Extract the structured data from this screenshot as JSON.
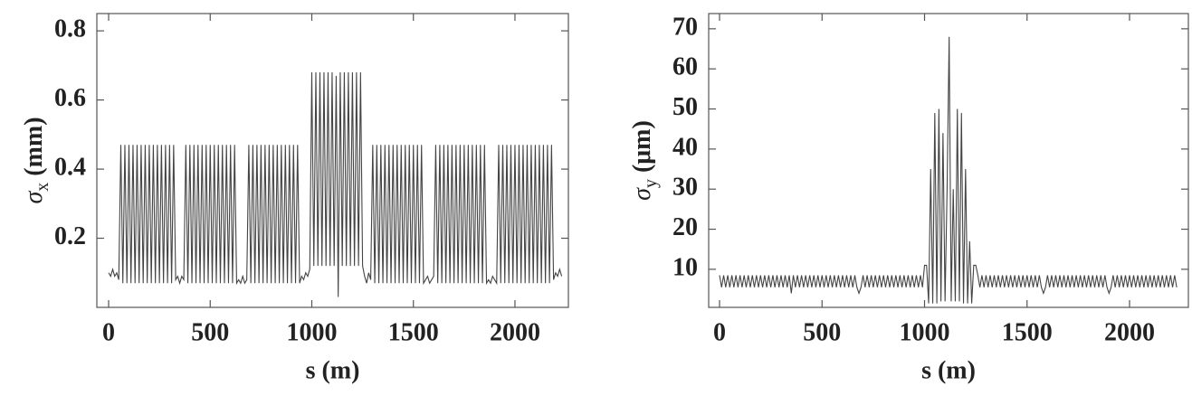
{
  "chart_data": [
    {
      "type": "line",
      "ylabel_symbol": "σ",
      "ylabel_subscript": "x",
      "ylabel_unit": " (mm)",
      "xlabel": "s (m)",
      "xlim": [
        -58,
        2263
      ],
      "xticks": [
        0,
        500,
        1000,
        1500,
        2000
      ],
      "ylim": [
        0,
        0.85
      ],
      "yticks": [
        0.2,
        0.4,
        0.6,
        0.8
      ],
      "color": "#444",
      "x": [
        0,
        10,
        20,
        30,
        40,
        50,
        60,
        70,
        80,
        90,
        100,
        110,
        120,
        130,
        140,
        150,
        160,
        170,
        180,
        190,
        200,
        210,
        220,
        230,
        240,
        250,
        260,
        270,
        280,
        290,
        300,
        310,
        320,
        330,
        340,
        350,
        360,
        370,
        380,
        390,
        400,
        410,
        420,
        430,
        440,
        450,
        460,
        470,
        480,
        490,
        500,
        510,
        520,
        530,
        540,
        550,
        560,
        570,
        580,
        590,
        600,
        610,
        620,
        630,
        640,
        650,
        660,
        670,
        680,
        690,
        700,
        710,
        720,
        730,
        740,
        750,
        760,
        770,
        780,
        790,
        800,
        810,
        820,
        830,
        840,
        850,
        860,
        870,
        880,
        890,
        900,
        910,
        920,
        930,
        940,
        950,
        960,
        970,
        980,
        990,
        1000,
        1010,
        1020,
        1030,
        1040,
        1050,
        1060,
        1070,
        1080,
        1090,
        1100,
        1110,
        1120,
        1130,
        1140,
        1150,
        1160,
        1170,
        1180,
        1190,
        1200,
        1210,
        1220,
        1230,
        1240,
        1250,
        1260,
        1270,
        1280,
        1290,
        1300,
        1310,
        1320,
        1330,
        1340,
        1350,
        1360,
        1370,
        1380,
        1390,
        1400,
        1410,
        1420,
        1430,
        1440,
        1450,
        1460,
        1470,
        1480,
        1490,
        1500,
        1510,
        1520,
        1530,
        1540,
        1550,
        1560,
        1570,
        1580,
        1590,
        1600,
        1610,
        1620,
        1630,
        1640,
        1650,
        1660,
        1670,
        1680,
        1690,
        1700,
        1710,
        1720,
        1730,
        1740,
        1750,
        1760,
        1770,
        1780,
        1790,
        1800,
        1810,
        1820,
        1830,
        1840,
        1850,
        1860,
        1870,
        1880,
        1890,
        1900,
        1910,
        1920,
        1930,
        1940,
        1950,
        1960,
        1970,
        1980,
        1990,
        2000,
        2010,
        2020,
        2030,
        2040,
        2050,
        2060,
        2070,
        2080,
        2090,
        2100,
        2110,
        2120,
        2130,
        2140,
        2150,
        2160,
        2170,
        2180,
        2190,
        2200,
        2210,
        2220,
        2230
      ],
      "values": [
        0.1,
        0.09,
        0.11,
        0.09,
        0.1,
        0.08,
        0.47,
        0.07,
        0.47,
        0.07,
        0.47,
        0.07,
        0.47,
        0.07,
        0.47,
        0.07,
        0.47,
        0.07,
        0.47,
        0.07,
        0.47,
        0.07,
        0.47,
        0.07,
        0.47,
        0.07,
        0.47,
        0.07,
        0.47,
        0.07,
        0.47,
        0.07,
        0.47,
        0.08,
        0.09,
        0.07,
        0.09,
        0.08,
        0.47,
        0.07,
        0.47,
        0.07,
        0.47,
        0.07,
        0.47,
        0.07,
        0.47,
        0.07,
        0.47,
        0.07,
        0.47,
        0.07,
        0.47,
        0.07,
        0.47,
        0.07,
        0.47,
        0.07,
        0.47,
        0.07,
        0.47,
        0.07,
        0.47,
        0.07,
        0.08,
        0.07,
        0.09,
        0.07,
        0.08,
        0.47,
        0.07,
        0.47,
        0.07,
        0.47,
        0.07,
        0.47,
        0.07,
        0.47,
        0.07,
        0.47,
        0.07,
        0.47,
        0.07,
        0.47,
        0.07,
        0.47,
        0.07,
        0.47,
        0.07,
        0.47,
        0.07,
        0.47,
        0.07,
        0.47,
        0.07,
        0.09,
        0.08,
        0.1,
        0.09,
        0.11,
        0.68,
        0.12,
        0.68,
        0.12,
        0.68,
        0.12,
        0.68,
        0.12,
        0.68,
        0.12,
        0.68,
        0.12,
        0.67,
        0.03,
        0.68,
        0.12,
        0.68,
        0.12,
        0.68,
        0.12,
        0.68,
        0.12,
        0.68,
        0.12,
        0.68,
        0.12,
        0.09,
        0.07,
        0.1,
        0.08,
        0.47,
        0.07,
        0.47,
        0.07,
        0.47,
        0.07,
        0.47,
        0.07,
        0.47,
        0.07,
        0.47,
        0.07,
        0.47,
        0.07,
        0.47,
        0.07,
        0.47,
        0.07,
        0.47,
        0.07,
        0.47,
        0.07,
        0.47,
        0.07,
        0.47,
        0.07,
        0.08,
        0.09,
        0.07,
        0.08,
        0.09,
        0.47,
        0.07,
        0.47,
        0.07,
        0.47,
        0.07,
        0.47,
        0.07,
        0.47,
        0.07,
        0.47,
        0.07,
        0.47,
        0.07,
        0.47,
        0.07,
        0.47,
        0.07,
        0.47,
        0.07,
        0.47,
        0.07,
        0.47,
        0.07,
        0.47,
        0.07,
        0.08,
        0.07,
        0.09,
        0.08,
        0.07,
        0.47,
        0.07,
        0.47,
        0.07,
        0.47,
        0.07,
        0.47,
        0.07,
        0.47,
        0.07,
        0.47,
        0.07,
        0.47,
        0.07,
        0.47,
        0.07,
        0.47,
        0.07,
        0.47,
        0.07,
        0.47,
        0.07,
        0.47,
        0.07,
        0.47,
        0.07,
        0.47,
        0.08,
        0.1,
        0.09,
        0.11,
        0.09
      ]
    },
    {
      "type": "line",
      "ylabel_symbol": "σ",
      "ylabel_subscript": "y",
      "ylabel_unit": " (μm)",
      "xlabel": "s (m)",
      "xlim": [
        -53,
        2287
      ],
      "xticks": [
        0,
        500,
        1000,
        1500,
        2000
      ],
      "ylim": [
        0.5,
        73.8
      ],
      "yticks": [
        10,
        20,
        30,
        40,
        50,
        60,
        70
      ],
      "color": "#444",
      "x": [
        0,
        10,
        20,
        30,
        40,
        50,
        60,
        70,
        80,
        90,
        100,
        110,
        120,
        130,
        140,
        150,
        160,
        170,
        180,
        190,
        200,
        210,
        220,
        230,
        240,
        250,
        260,
        270,
        280,
        290,
        300,
        310,
        320,
        330,
        340,
        350,
        360,
        370,
        380,
        390,
        400,
        410,
        420,
        430,
        440,
        450,
        460,
        470,
        480,
        490,
        500,
        510,
        520,
        530,
        540,
        550,
        560,
        570,
        580,
        590,
        600,
        610,
        620,
        630,
        640,
        650,
        660,
        670,
        680,
        690,
        700,
        710,
        720,
        730,
        740,
        750,
        760,
        770,
        780,
        790,
        800,
        810,
        820,
        830,
        840,
        850,
        860,
        870,
        880,
        890,
        900,
        910,
        920,
        930,
        940,
        950,
        960,
        970,
        980,
        990,
        1000,
        1010,
        1020,
        1030,
        1040,
        1050,
        1060,
        1070,
        1080,
        1090,
        1100,
        1110,
        1120,
        1130,
        1140,
        1150,
        1160,
        1170,
        1180,
        1190,
        1200,
        1210,
        1220,
        1230,
        1240,
        1250,
        1260,
        1270,
        1280,
        1290,
        1300,
        1310,
        1320,
        1330,
        1340,
        1350,
        1360,
        1370,
        1380,
        1390,
        1400,
        1410,
        1420,
        1430,
        1440,
        1450,
        1460,
        1470,
        1480,
        1490,
        1500,
        1510,
        1520,
        1530,
        1540,
        1550,
        1560,
        1570,
        1580,
        1590,
        1600,
        1610,
        1620,
        1630,
        1640,
        1650,
        1660,
        1670,
        1680,
        1690,
        1700,
        1710,
        1720,
        1730,
        1740,
        1750,
        1760,
        1770,
        1780,
        1790,
        1800,
        1810,
        1820,
        1830,
        1840,
        1850,
        1860,
        1870,
        1880,
        1890,
        1900,
        1910,
        1920,
        1930,
        1940,
        1950,
        1960,
        1970,
        1980,
        1990,
        2000,
        2010,
        2020,
        2030,
        2040,
        2050,
        2060,
        2070,
        2080,
        2090,
        2100,
        2110,
        2120,
        2130,
        2140,
        2150,
        2160,
        2170,
        2180,
        2190,
        2200,
        2210,
        2220,
        2230
      ],
      "values": [
        8.5,
        5.5,
        8.5,
        5.5,
        8.5,
        5.5,
        8.5,
        5.5,
        8.5,
        5.5,
        8.5,
        5.5,
        8.5,
        5.5,
        8.5,
        5.5,
        8.5,
        5.5,
        8.5,
        5.5,
        8.5,
        5.5,
        8.5,
        5.5,
        8.5,
        5.5,
        8.5,
        5.5,
        8.5,
        5.5,
        8.5,
        5.5,
        8.5,
        5.5,
        8.5,
        4,
        8.5,
        5.5,
        8.5,
        5.5,
        8.5,
        5.5,
        8.5,
        5.5,
        8.5,
        5.5,
        8.5,
        5.5,
        8.5,
        5.5,
        8.5,
        5.5,
        8.5,
        5.5,
        8.5,
        5.5,
        8.5,
        5.5,
        8.5,
        5.5,
        8.5,
        5.5,
        8.5,
        5.5,
        8.5,
        5.5,
        8.5,
        5.5,
        4,
        5.5,
        8.5,
        5.5,
        8.5,
        5.5,
        8.5,
        5.5,
        8.5,
        5.5,
        8.5,
        5.5,
        8.5,
        5.5,
        8.5,
        5.5,
        8.5,
        5.5,
        8.5,
        5.5,
        8.5,
        5.5,
        8.5,
        5.5,
        8.5,
        5.5,
        8.5,
        5.5,
        8.5,
        5.5,
        8.5,
        5.5,
        11,
        11,
        1.5,
        35,
        1.5,
        49,
        1.5,
        50,
        2,
        44,
        2,
        30,
        68,
        2,
        30,
        2,
        50,
        2,
        49,
        1.5,
        35,
        1.5,
        17,
        1.5,
        11,
        11,
        8.5,
        5.5,
        8.5,
        5.5,
        8.5,
        5.5,
        8.5,
        5.5,
        8.5,
        5.5,
        8.5,
        5.5,
        8.5,
        5.5,
        8.5,
        5.5,
        8.5,
        5.5,
        8.5,
        5.5,
        8.5,
        5.5,
        8.5,
        5.5,
        8.5,
        5.5,
        8.5,
        5.5,
        8.5,
        5.5,
        8.5,
        5.5,
        4,
        5.5,
        8.5,
        5.5,
        8.5,
        5.5,
        8.5,
        5.5,
        8.5,
        5.5,
        8.5,
        5.5,
        8.5,
        5.5,
        8.5,
        5.5,
        8.5,
        5.5,
        8.5,
        5.5,
        8.5,
        5.5,
        8.5,
        5.5,
        8.5,
        5.5,
        8.5,
        5.5,
        8.5,
        5.5,
        8.5,
        5.5,
        4,
        5.5,
        8.5,
        5.5,
        8.5,
        5.5,
        8.5,
        5.5,
        8.5,
        5.5,
        8.5,
        5.5,
        8.5,
        5.5,
        8.5,
        5.5,
        8.5,
        5.5,
        8.5,
        5.5,
        8.5,
        5.5,
        8.5,
        5.5,
        8.5,
        5.5,
        8.5,
        5.5,
        8.5,
        5.5,
        8.5,
        5.5,
        8.5,
        5.5
      ]
    }
  ]
}
